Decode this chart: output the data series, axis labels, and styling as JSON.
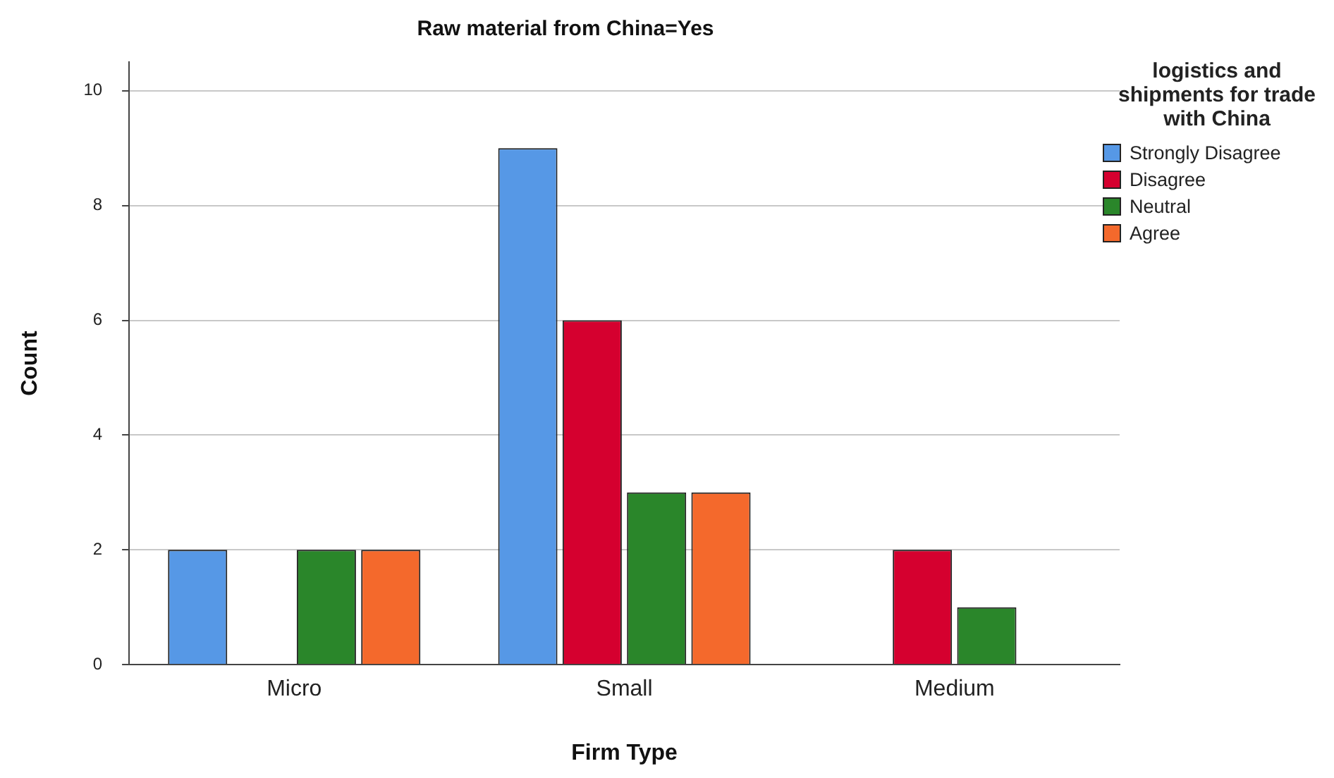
{
  "chart_data": {
    "type": "bar",
    "title": "Raw material from China=Yes",
    "xlabel": "Firm Type",
    "ylabel": "Count",
    "legend_title": "logistics and shipments for trade with China",
    "categories": [
      "Micro",
      "Small",
      "Medium"
    ],
    "series": [
      {
        "name": "Strongly Disagree",
        "color": "#5698e6",
        "values": [
          2,
          9,
          null
        ]
      },
      {
        "name": "Disagree",
        "color": "#d5002f",
        "values": [
          null,
          6,
          2
        ]
      },
      {
        "name": "Neutral",
        "color": "#2a862a",
        "values": [
          2,
          3,
          1
        ]
      },
      {
        "name": "Agree",
        "color": "#f4692c",
        "values": [
          2,
          3,
          null
        ]
      }
    ],
    "ylim": [
      0,
      10.5
    ],
    "yticks": [
      0,
      2,
      4,
      6,
      8,
      10
    ],
    "grid": "y",
    "legend": "top right"
  }
}
